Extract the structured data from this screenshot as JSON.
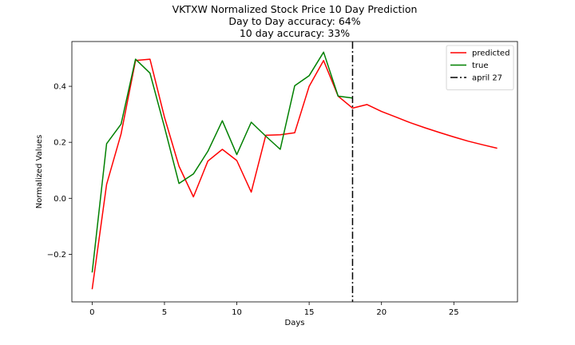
{
  "chart_data": {
    "type": "line",
    "title": "VKTXW Normalized Stock Price 10 Day Prediction",
    "subtitles": [
      "Day to Day accuracy: 64%",
      "10 day accuracy: 33%"
    ],
    "xlabel": "Days",
    "ylabel": "Normalized Values",
    "xlim": [
      -1.4,
      29.4
    ],
    "ylim": [
      -0.37,
      0.56
    ],
    "xticks": [
      0,
      5,
      10,
      15,
      20,
      25
    ],
    "yticks": [
      -0.2,
      0.0,
      0.2,
      0.4
    ],
    "ytick_labels": [
      "−0.2",
      "0.0",
      "0.2",
      "0.4"
    ],
    "legend_position": "top-right",
    "series": [
      {
        "name": "predicted",
        "color": "#ff0000",
        "style": "solid",
        "x": [
          0,
          1,
          2,
          3,
          4,
          5,
          6,
          7,
          8,
          9,
          10,
          11,
          12,
          13,
          14,
          15,
          16,
          17,
          18,
          19,
          20,
          21,
          22,
          23,
          24,
          25,
          26,
          27,
          28
        ],
        "y": [
          -0.325,
          0.05,
          0.23,
          0.492,
          0.497,
          0.29,
          0.115,
          0.005,
          0.133,
          0.175,
          0.135,
          0.022,
          0.225,
          0.227,
          0.234,
          0.4,
          0.492,
          0.365,
          0.322,
          0.335,
          0.31,
          0.29,
          0.27,
          0.252,
          0.235,
          0.219,
          0.204,
          0.191,
          0.179
        ]
      },
      {
        "name": "true",
        "color": "#008000",
        "style": "solid",
        "x": [
          0,
          1,
          2,
          3,
          4,
          5,
          6,
          7,
          8,
          9,
          10,
          11,
          12,
          13,
          14,
          15,
          16,
          17,
          18
        ],
        "y": [
          -0.265,
          0.195,
          0.265,
          0.497,
          0.447,
          0.255,
          0.053,
          0.087,
          0.168,
          0.277,
          0.156,
          0.272,
          0.222,
          0.175,
          0.402,
          0.438,
          0.522,
          0.365,
          0.358
        ]
      }
    ],
    "vline": {
      "name": "april 27",
      "x": 18,
      "color": "#000000",
      "style": "dashdot"
    }
  }
}
